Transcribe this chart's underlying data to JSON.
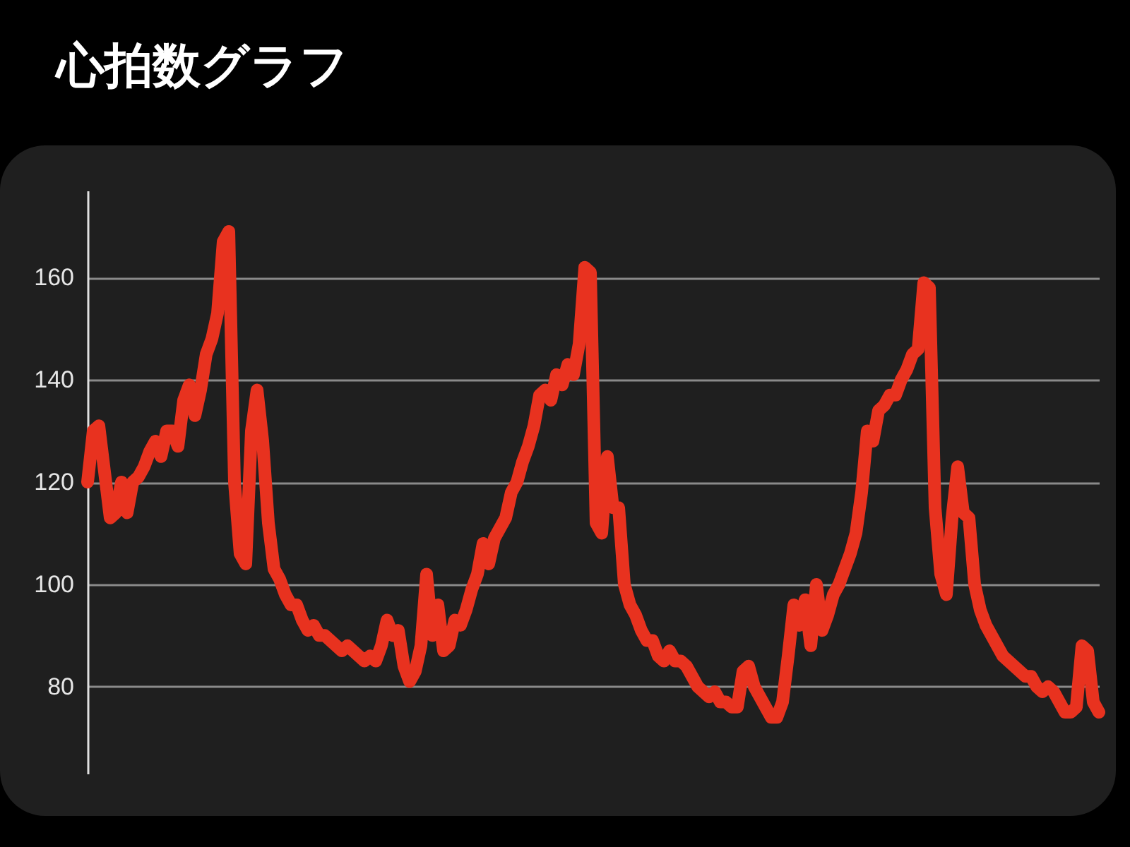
{
  "chart_data": {
    "type": "line",
    "title": "心拍数グラフ",
    "categories": [
      null,
      null,
      null,
      null,
      null,
      null,
      null,
      null,
      null,
      null,
      null,
      null,
      null,
      null,
      null,
      null,
      null,
      null,
      null,
      null,
      null,
      null,
      null,
      null,
      null,
      null,
      null,
      null,
      null,
      null,
      null,
      null,
      null,
      null,
      null,
      null,
      null,
      null,
      null,
      null,
      null,
      null,
      null,
      null,
      null,
      null,
      null,
      null,
      null,
      null,
      null,
      null,
      null,
      null,
      null,
      null,
      null,
      null,
      null,
      null,
      null,
      null,
      null,
      null,
      null,
      null,
      null,
      null,
      null,
      null,
      null,
      null,
      null,
      null,
      null,
      null,
      null,
      null,
      null,
      null,
      null,
      null,
      null,
      null,
      null,
      null,
      null,
      null,
      null,
      null,
      null,
      null,
      null,
      null,
      null,
      null,
      null,
      null,
      null,
      null,
      null,
      null,
      null,
      null,
      null,
      null,
      null,
      null,
      null,
      null,
      null,
      null,
      null,
      null,
      null,
      null,
      null,
      null,
      null,
      null,
      null,
      null,
      null,
      null,
      null,
      null,
      null,
      null,
      null,
      null,
      null,
      null,
      null,
      null,
      null,
      null,
      null,
      null,
      null,
      null,
      null,
      null,
      null,
      null,
      null,
      null,
      null,
      null,
      null,
      null,
      null,
      null,
      null,
      null,
      null,
      null,
      null,
      null,
      null,
      null,
      null,
      null,
      null,
      null,
      null,
      null,
      null,
      null,
      null,
      null,
      null,
      null,
      null,
      null,
      null,
      null,
      null,
      null,
      null,
      null
    ],
    "series": [
      {
        "color": "#e8321f",
        "values": [
          120,
          130,
          131,
          122,
          113,
          114,
          120,
          114,
          120,
          121,
          123,
          126,
          128,
          125,
          130,
          130,
          127,
          136,
          139,
          133,
          138,
          145,
          148,
          153,
          167,
          169,
          120,
          106,
          104,
          130,
          138,
          128,
          112,
          103,
          101,
          98,
          96,
          96,
          93,
          91,
          92,
          90,
          90,
          89,
          88,
          87,
          88,
          87,
          86,
          85,
          86,
          85,
          88,
          93,
          90,
          91,
          84,
          81,
          83,
          88,
          102,
          90,
          96,
          87,
          88,
          93,
          92,
          95,
          99,
          102,
          108,
          104,
          109,
          111,
          113,
          118,
          120,
          124,
          127,
          131,
          137,
          138,
          136,
          141,
          139,
          143,
          141,
          147,
          162,
          161,
          112,
          110,
          125,
          115,
          115,
          100,
          96,
          94,
          91,
          89,
          89,
          86,
          85,
          87,
          85,
          85,
          84,
          82,
          80,
          79,
          78,
          79,
          77,
          77,
          76,
          76,
          83,
          84,
          80,
          78,
          76,
          74,
          74,
          77,
          86,
          96,
          92,
          97,
          88,
          100,
          91,
          94,
          98,
          100,
          103,
          106,
          110,
          118,
          130,
          128,
          134,
          135,
          137,
          137,
          140,
          142,
          145,
          146,
          159,
          158,
          115,
          102,
          98,
          113,
          123,
          114,
          113,
          100,
          95,
          92,
          90,
          88,
          86,
          85,
          84,
          83,
          82,
          82,
          80,
          79,
          80,
          79,
          77,
          75,
          75,
          76,
          88,
          87,
          77,
          75
        ]
      }
    ],
    "ylim": [
      63,
      177
    ],
    "yticks": [
      80,
      100,
      120,
      140,
      160
    ],
    "grid": "y",
    "tick_labels": "y",
    "line_style": "solid"
  }
}
